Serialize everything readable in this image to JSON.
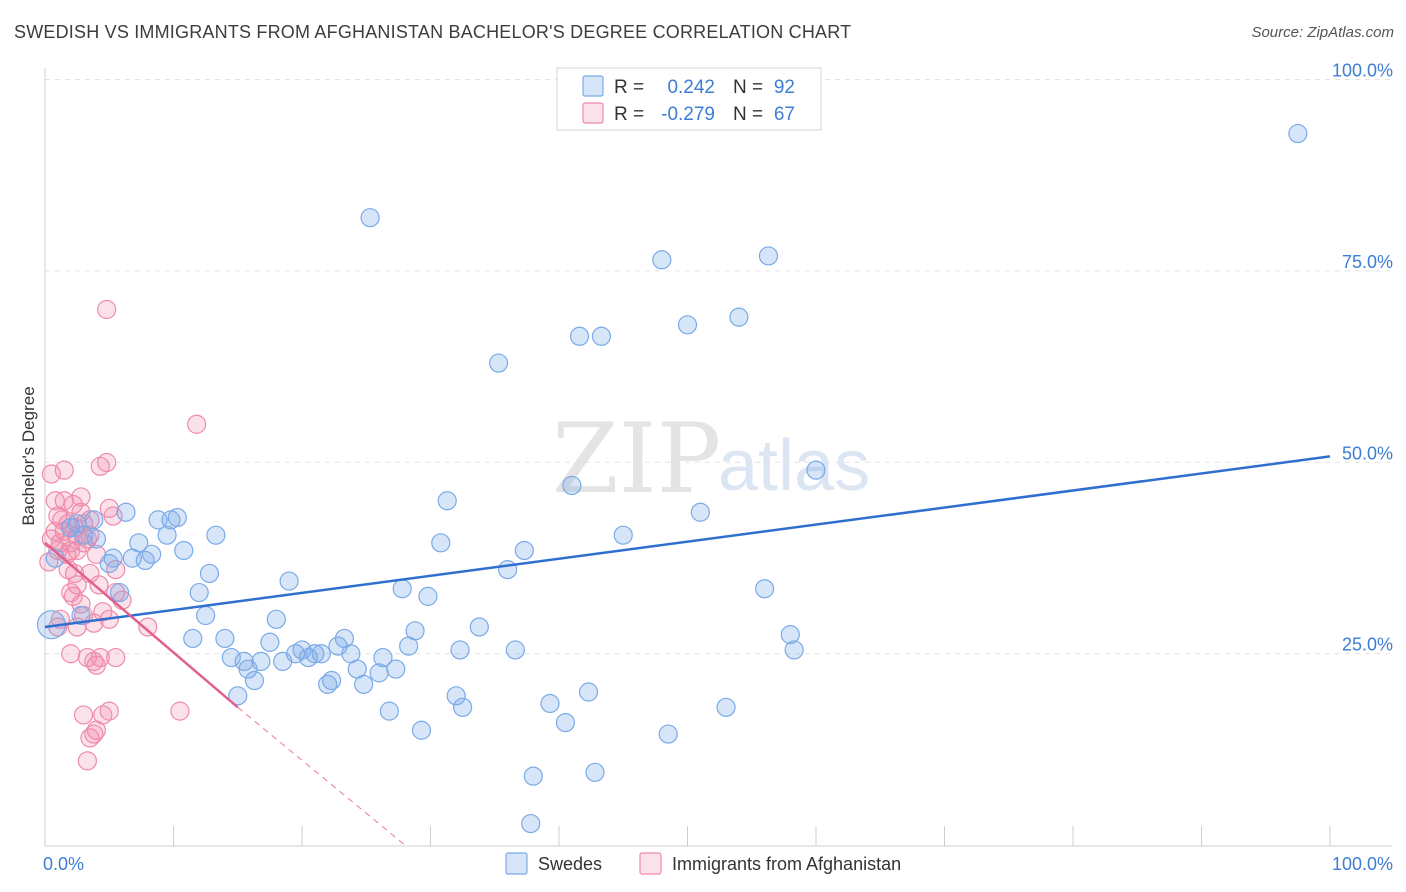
{
  "title": "SWEDISH VS IMMIGRANTS FROM AFGHANISTAN BACHELOR'S DEGREE CORRELATION CHART",
  "source": "Source: ZipAtlas.com",
  "watermark": {
    "zip": "ZIP",
    "atlas": "atlas"
  },
  "colors": {
    "swedes": "#7aaae8",
    "swedes_fill": "rgba(122,170,232,0.30)",
    "swedes_line": "#2f6fd0",
    "afghan": "#f08aaa",
    "afghan_fill": "rgba(240,138,170,0.25)",
    "afghan_line": "#e0608e",
    "grid": "#e2e2e2",
    "tick_label": "#3d7dd6"
  },
  "legend": {
    "rows": [
      {
        "r_label": "R =",
        "r_value": "0.242",
        "n_label": "N =",
        "n_value": "92"
      },
      {
        "r_label": "R =",
        "r_value": "-0.279",
        "n_label": "N =",
        "n_value": "67"
      }
    ]
  },
  "chart_data": {
    "type": "scatter",
    "title": "SWEDISH VS IMMIGRANTS FROM AFGHANISTAN BACHELOR'S DEGREE CORRELATION CHART",
    "xlabel": "",
    "ylabel": "Bachelor's Degree",
    "xlim": [
      0,
      100
    ],
    "ylim": [
      0,
      100
    ],
    "x_tick_labels": [
      "0.0%",
      "100.0%"
    ],
    "y_ticks": [
      25,
      50,
      75,
      100
    ],
    "y_tick_labels": [
      "25.0%",
      "50.0%",
      "75.0%",
      "100.0%"
    ],
    "grid": true,
    "series": [
      {
        "name": "Swedes",
        "r": 0.242,
        "n": 92,
        "trend": {
          "x": [
            0,
            100
          ],
          "y": [
            28.5,
            50.8
          ]
        },
        "points": [
          [
            0.5,
            28.8
          ],
          [
            0.8,
            37.5
          ],
          [
            2.0,
            41.5
          ],
          [
            2.5,
            42.0
          ],
          [
            3.0,
            40.5
          ],
          [
            2.8,
            30.0
          ],
          [
            6.3,
            43.5
          ],
          [
            3.8,
            42.5
          ],
          [
            4.0,
            40.0
          ],
          [
            5.0,
            36.8
          ],
          [
            5.3,
            37.5
          ],
          [
            5.8,
            33.0
          ],
          [
            6.8,
            37.5
          ],
          [
            7.3,
            39.5
          ],
          [
            7.8,
            37.2
          ],
          [
            8.3,
            38.0
          ],
          [
            8.8,
            42.5
          ],
          [
            9.5,
            40.5
          ],
          [
            9.8,
            42.5
          ],
          [
            10.3,
            42.8
          ],
          [
            10.8,
            38.5
          ],
          [
            11.5,
            27.0
          ],
          [
            12.0,
            33.0
          ],
          [
            12.5,
            30.0
          ],
          [
            12.8,
            35.5
          ],
          [
            13.3,
            40.5
          ],
          [
            14.0,
            27.0
          ],
          [
            14.5,
            24.5
          ],
          [
            15.0,
            19.5
          ],
          [
            15.5,
            24.0
          ],
          [
            15.8,
            23.0
          ],
          [
            16.3,
            21.5
          ],
          [
            16.8,
            24.0
          ],
          [
            17.5,
            26.5
          ],
          [
            18.0,
            29.5
          ],
          [
            18.5,
            24.0
          ],
          [
            19.0,
            34.5
          ],
          [
            19.5,
            25.0
          ],
          [
            20.0,
            25.5
          ],
          [
            20.5,
            24.5
          ],
          [
            21.0,
            25.0
          ],
          [
            21.5,
            25.0
          ],
          [
            22.0,
            21.0
          ],
          [
            22.3,
            21.5
          ],
          [
            22.8,
            26.0
          ],
          [
            23.3,
            27.0
          ],
          [
            23.8,
            25.0
          ],
          [
            24.3,
            23.0
          ],
          [
            24.8,
            21.0
          ],
          [
            25.3,
            82.0
          ],
          [
            26.0,
            22.5
          ],
          [
            26.3,
            24.5
          ],
          [
            26.8,
            17.5
          ],
          [
            27.3,
            23.0
          ],
          [
            27.8,
            33.5
          ],
          [
            28.3,
            26.0
          ],
          [
            28.8,
            28.0
          ],
          [
            29.3,
            15.0
          ],
          [
            29.8,
            32.5
          ],
          [
            30.8,
            39.5
          ],
          [
            31.3,
            45.0
          ],
          [
            32.0,
            19.5
          ],
          [
            32.3,
            25.5
          ],
          [
            32.5,
            18.0
          ],
          [
            33.8,
            28.5
          ],
          [
            35.3,
            63.0
          ],
          [
            36.0,
            36.0
          ],
          [
            36.6,
            25.5
          ],
          [
            37.3,
            38.5
          ],
          [
            38.0,
            9.0
          ],
          [
            37.8,
            2.8
          ],
          [
            39.3,
            18.5
          ],
          [
            40.5,
            16.0
          ],
          [
            41.0,
            47.0
          ],
          [
            41.6,
            66.5
          ],
          [
            42.3,
            20.0
          ],
          [
            42.8,
            9.5
          ],
          [
            43.3,
            66.5
          ],
          [
            45.0,
            40.5
          ],
          [
            48.0,
            76.5
          ],
          [
            48.5,
            14.5
          ],
          [
            50.0,
            68.0
          ],
          [
            51.0,
            43.5
          ],
          [
            53.0,
            18.0
          ],
          [
            54.0,
            69.0
          ],
          [
            56.0,
            33.5
          ],
          [
            56.3,
            77.0
          ],
          [
            58.0,
            27.5
          ],
          [
            58.3,
            25.5
          ],
          [
            60.0,
            49.0
          ],
          [
            97.5,
            93.0
          ]
        ]
      },
      {
        "name": "Immigrants from Afghanistan",
        "r": -0.279,
        "n": 67,
        "trend": {
          "x": [
            0,
            15
          ],
          "y": [
            39.5,
            18.0
          ]
        },
        "trend_dashed": {
          "x": [
            15,
            28
          ],
          "y": [
            18.0,
            0
          ]
        },
        "points": [
          [
            0.3,
            37.0
          ],
          [
            0.5,
            40.0
          ],
          [
            0.8,
            41.0
          ],
          [
            1.0,
            38.5
          ],
          [
            1.2,
            39.5
          ],
          [
            1.3,
            42.5
          ],
          [
            1.5,
            45.0
          ],
          [
            0.5,
            48.5
          ],
          [
            0.8,
            45.0
          ],
          [
            1.0,
            43.0
          ],
          [
            1.5,
            41.0
          ],
          [
            1.8,
            42.0
          ],
          [
            2.0,
            38.5
          ],
          [
            2.2,
            44.5
          ],
          [
            2.5,
            40.5
          ],
          [
            1.5,
            49.0
          ],
          [
            2.8,
            45.5
          ],
          [
            3.0,
            42.0
          ],
          [
            1.7,
            38.0
          ],
          [
            2.0,
            39.5
          ],
          [
            2.3,
            41.5
          ],
          [
            2.5,
            38.5
          ],
          [
            3.0,
            39.5
          ],
          [
            3.3,
            40.0
          ],
          [
            3.5,
            42.5
          ],
          [
            2.8,
            43.5
          ],
          [
            1.8,
            36.0
          ],
          [
            2.0,
            33.0
          ],
          [
            2.2,
            32.5
          ],
          [
            2.5,
            34.0
          ],
          [
            3.5,
            35.5
          ],
          [
            2.8,
            31.5
          ],
          [
            3.0,
            30.0
          ],
          [
            1.2,
            29.5
          ],
          [
            2.5,
            28.5
          ],
          [
            3.8,
            29.0
          ],
          [
            4.2,
            34.0
          ],
          [
            4.5,
            30.5
          ],
          [
            5.0,
            29.5
          ],
          [
            5.5,
            33.0
          ],
          [
            6.0,
            32.0
          ],
          [
            3.3,
            24.5
          ],
          [
            3.8,
            24.0
          ],
          [
            4.3,
            24.5
          ],
          [
            4.0,
            23.5
          ],
          [
            5.5,
            24.5
          ],
          [
            2.0,
            25.0
          ],
          [
            3.0,
            17.0
          ],
          [
            4.5,
            17.0
          ],
          [
            5.0,
            17.5
          ],
          [
            4.0,
            15.0
          ],
          [
            3.5,
            14.0
          ],
          [
            3.8,
            14.5
          ],
          [
            3.3,
            11.0
          ],
          [
            5.5,
            36.0
          ],
          [
            5.3,
            43.0
          ],
          [
            4.8,
            50.0
          ],
          [
            4.3,
            49.5
          ],
          [
            5.0,
            44.0
          ],
          [
            4.8,
            70.0
          ],
          [
            11.8,
            55.0
          ],
          [
            10.5,
            17.5
          ],
          [
            8.0,
            28.5
          ],
          [
            1.0,
            28.5
          ],
          [
            4.0,
            38.0
          ],
          [
            2.3,
            35.5
          ],
          [
            3.5,
            40.5
          ]
        ]
      }
    ]
  },
  "bottom_legend": [
    {
      "label": "Swedes"
    },
    {
      "label": "Immigrants from Afghanistan"
    }
  ]
}
